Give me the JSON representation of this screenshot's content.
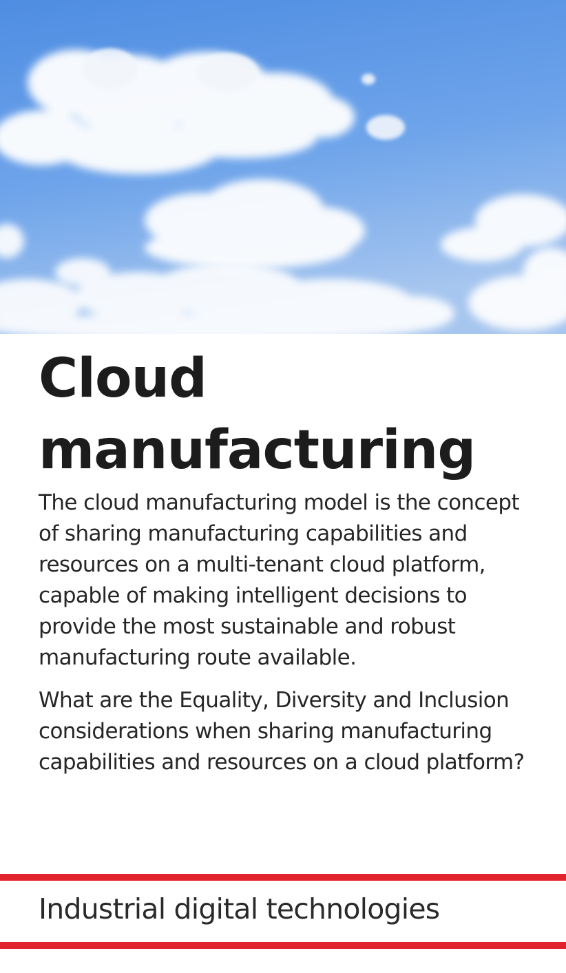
{
  "hero_image": {
    "subject": "blue sky with white clouds"
  },
  "card": {
    "title": "Cloud manufacturing",
    "paragraphs": [
      "The cloud manufacturing model is the concept of sharing manufacturing capabilities and resources on a multi-tenant cloud platform, capable of making intelligent decisions to provide the most sustainable and robust manufacturing route available.",
      "What are the Equality, Diversity and Inclusion considerations when sharing manufacturing capabilities and resources on a cloud platform?"
    ],
    "category": "Industrial digital technologies"
  },
  "colors": {
    "accent_rule": "#e1232d",
    "sky_top": "#5e9ae6",
    "sky_bottom": "#a9c8f0"
  }
}
